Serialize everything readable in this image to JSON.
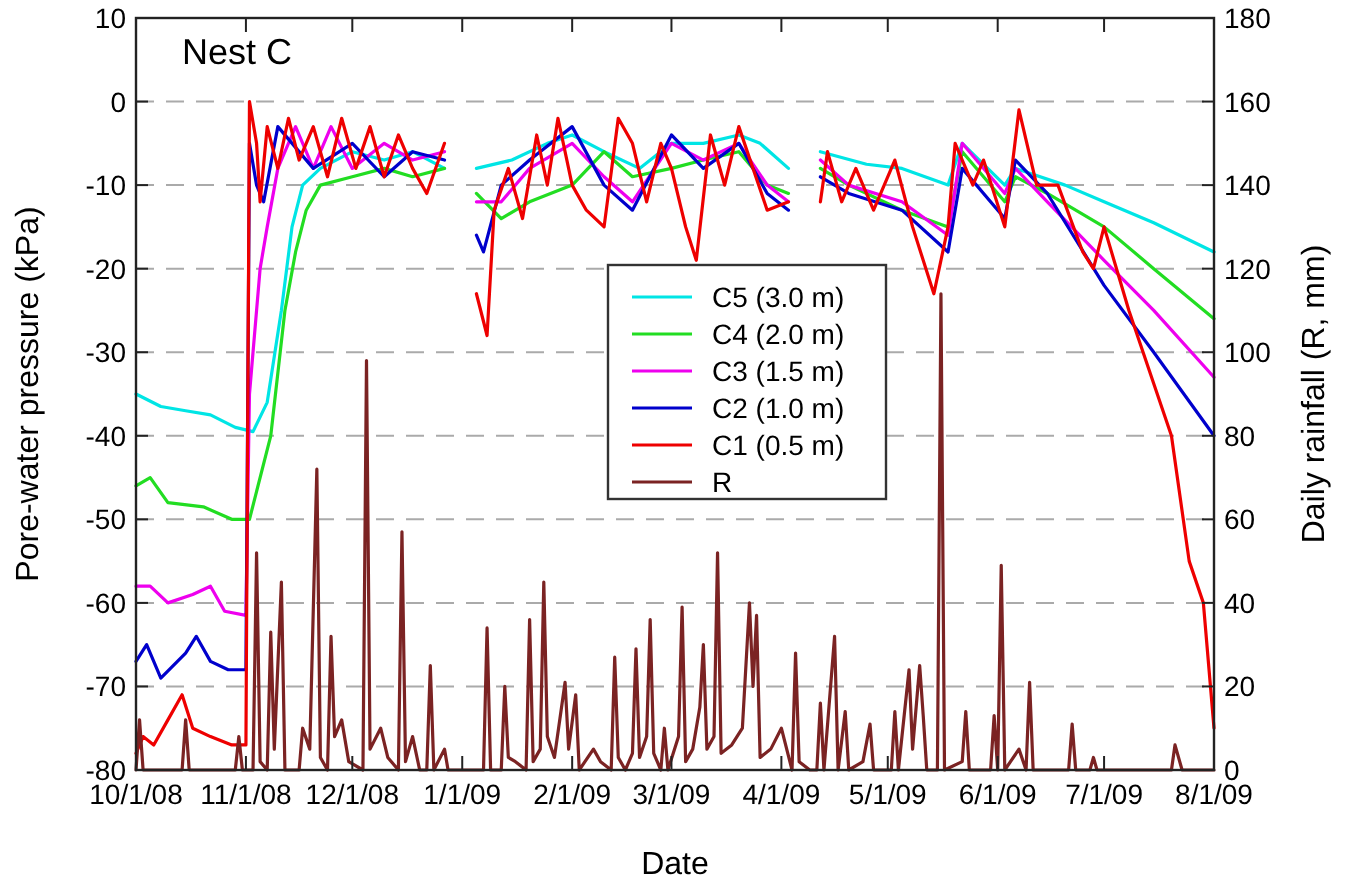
{
  "chart_data": {
    "type": "line",
    "xlabel": "Date",
    "ylabel": "Pore-water pressure (kPa)",
    "y2label": "Daily rainfall (R, mm)",
    "annotations": [
      "Nest C"
    ],
    "xlim": [
      "2008-10-01",
      "2009-08-01"
    ],
    "xticks": [
      {
        "value": "2008-10-01",
        "label": "10/1/08"
      },
      {
        "value": "2008-11-01",
        "label": "11/1/08"
      },
      {
        "value": "2008-12-01",
        "label": "12/1/08"
      },
      {
        "value": "2009-01-01",
        "label": "1/1/09"
      },
      {
        "value": "2009-02-01",
        "label": "2/1/09"
      },
      {
        "value": "2009-03-01",
        "label": "3/1/09"
      },
      {
        "value": "2009-04-01",
        "label": "4/1/09"
      },
      {
        "value": "2009-05-01",
        "label": "5/1/09"
      },
      {
        "value": "2009-06-01",
        "label": "6/1/09"
      },
      {
        "value": "2009-07-01",
        "label": "7/1/09"
      },
      {
        "value": "2009-08-01",
        "label": "8/1/09"
      }
    ],
    "ylim": [
      -80,
      10
    ],
    "yticks": [
      -80,
      -70,
      -60,
      -50,
      -40,
      -30,
      -20,
      -10,
      0,
      10
    ],
    "y2lim": [
      0,
      180
    ],
    "y2ticks": [
      0,
      20,
      40,
      60,
      80,
      100,
      120,
      140,
      160,
      180
    ],
    "grid": "y",
    "legend": "center",
    "line_style": "solid",
    "marker": "none",
    "series": [
      {
        "name": "C5 (3.0 m)",
        "color": "#00e5e5",
        "x": [
          "2008-10-01",
          "2008-10-08",
          "2008-10-15",
          "2008-10-22",
          "2008-10-29",
          "2008-11-03",
          "2008-11-07",
          "2008-11-11",
          "2008-11-14",
          "2008-11-17",
          "2008-11-22",
          "2008-12-01",
          "2008-12-10",
          "2008-12-18",
          "2008-12-27",
          "2009-01-01",
          "2009-01-05",
          "2009-01-15",
          "2009-01-25",
          "2009-02-01",
          "2009-02-10",
          "2009-02-20",
          "2009-03-01",
          "2009-03-10",
          "2009-03-20",
          "2009-03-26",
          "2009-04-03",
          "2009-04-08",
          "2009-04-12",
          "2009-04-25",
          "2009-05-05",
          "2009-05-18",
          "2009-05-22",
          "2009-06-03",
          "2009-06-06",
          "2009-06-20",
          "2009-07-01",
          "2009-07-15",
          "2009-08-01"
        ],
        "values": [
          -35,
          -36.5,
          -37,
          -37.5,
          -39,
          -39.5,
          -36,
          -25,
          -15,
          -10,
          -8,
          -6,
          -7,
          -6,
          -8,
          null,
          -8,
          -7,
          -5,
          -4,
          -6,
          -8,
          -5,
          -5,
          -4,
          -5,
          -8,
          null,
          -6,
          -7.5,
          -8,
          -10,
          -5,
          -10,
          -8,
          -10,
          -12,
          -14.5,
          -18
        ]
      },
      {
        "name": "C4 (2.0 m)",
        "color": "#22dd22",
        "x": [
          "2008-10-01",
          "2008-10-05",
          "2008-10-10",
          "2008-10-20",
          "2008-10-28",
          "2008-11-02",
          "2008-11-08",
          "2008-11-12",
          "2008-11-15",
          "2008-11-18",
          "2008-11-22",
          "2008-12-01",
          "2008-12-10",
          "2008-12-18",
          "2008-12-27",
          "2009-01-01",
          "2009-01-05",
          "2009-01-12",
          "2009-01-20",
          "2009-02-01",
          "2009-02-10",
          "2009-02-18",
          "2009-03-01",
          "2009-03-10",
          "2009-03-20",
          "2009-03-28",
          "2009-04-03",
          "2009-04-08",
          "2009-04-12",
          "2009-04-20",
          "2009-05-05",
          "2009-05-18",
          "2009-05-22",
          "2009-06-03",
          "2009-06-06",
          "2009-06-15",
          "2009-07-01",
          "2009-07-15",
          "2009-08-01"
        ],
        "values": [
          -46,
          -45,
          -48,
          -48.5,
          -50,
          -50,
          -40,
          -25,
          -18,
          -13,
          -10,
          -9,
          -8,
          -9,
          -8,
          null,
          -11,
          -14,
          -12,
          -10,
          -6,
          -9,
          -8,
          -7,
          -6,
          -10,
          -11,
          null,
          -8,
          -10,
          -13,
          -15,
          -6,
          -12,
          -9,
          -11,
          -15,
          -20,
          -26
        ]
      },
      {
        "name": "C3 (1.5 m)",
        "color": "#ee00ee",
        "x": [
          "2008-10-01",
          "2008-10-05",
          "2008-10-10",
          "2008-10-17",
          "2008-10-22",
          "2008-10-26",
          "2008-11-01",
          "2008-11-02",
          "2008-11-05",
          "2008-11-07",
          "2008-11-10",
          "2008-11-15",
          "2008-11-20",
          "2008-11-25",
          "2008-12-01",
          "2008-12-10",
          "2008-12-18",
          "2008-12-27",
          "2009-01-01",
          "2009-01-05",
          "2009-01-12",
          "2009-01-20",
          "2009-02-01",
          "2009-02-10",
          "2009-02-18",
          "2009-03-01",
          "2009-03-10",
          "2009-03-20",
          "2009-03-28",
          "2009-04-03",
          "2009-04-08",
          "2009-04-12",
          "2009-04-20",
          "2009-05-05",
          "2009-05-18",
          "2009-05-22",
          "2009-06-03",
          "2009-06-06",
          "2009-06-15",
          "2009-07-01",
          "2009-07-15",
          "2009-08-01"
        ],
        "values": [
          -58,
          -58,
          -60,
          -59,
          -58,
          -61,
          -61.5,
          -35,
          -20,
          -15,
          -8,
          -3,
          -8,
          -3,
          -8,
          -5,
          -7,
          -6,
          null,
          -12,
          -12,
          -8,
          -5,
          -9,
          -12,
          -5,
          -7,
          -5,
          -10,
          -12,
          null,
          -7,
          -10,
          -12,
          -16,
          -5,
          -11,
          -8,
          -12,
          -19,
          -25,
          -33
        ]
      },
      {
        "name": "C2 (1.0 m)",
        "color": "#0000cc",
        "x": [
          "2008-10-01",
          "2008-10-04",
          "2008-10-08",
          "2008-10-15",
          "2008-10-18",
          "2008-10-22",
          "2008-10-27",
          "2008-11-01",
          "2008-11-02",
          "2008-11-04",
          "2008-11-06",
          "2008-11-10",
          "2008-11-20",
          "2008-12-01",
          "2008-12-10",
          "2008-12-18",
          "2008-12-27",
          "2009-01-01",
          "2009-01-05",
          "2009-01-07",
          "2009-01-12",
          "2009-01-20",
          "2009-02-01",
          "2009-02-10",
          "2009-02-18",
          "2009-03-01",
          "2009-03-10",
          "2009-03-20",
          "2009-03-28",
          "2009-04-03",
          "2009-04-08",
          "2009-04-12",
          "2009-04-20",
          "2009-05-05",
          "2009-05-18",
          "2009-05-22",
          "2009-06-03",
          "2009-06-06",
          "2009-06-15",
          "2009-07-01",
          "2009-07-15",
          "2009-08-01"
        ],
        "values": [
          -67,
          -65,
          -69,
          -66,
          -64,
          -67,
          -68,
          -68,
          -5,
          -10,
          -12,
          -3,
          -8,
          -5,
          -9,
          -6,
          -7,
          null,
          -16,
          -18,
          -10,
          -7,
          -3,
          -10,
          -13,
          -4,
          -8,
          -5,
          -11,
          -13,
          null,
          -9,
          -11,
          -13,
          -18,
          -8,
          -14,
          -7,
          -11,
          -22,
          -30,
          -40
        ]
      },
      {
        "name": "C1 (0.5 m)",
        "color": "#ee0000",
        "x": [
          "2008-10-01",
          "2008-10-03",
          "2008-10-06",
          "2008-10-10",
          "2008-10-14",
          "2008-10-17",
          "2008-10-22",
          "2008-10-28",
          "2008-11-01",
          "2008-11-02",
          "2008-11-04",
          "2008-11-05",
          "2008-11-07",
          "2008-11-10",
          "2008-11-13",
          "2008-11-16",
          "2008-11-20",
          "2008-11-24",
          "2008-11-28",
          "2008-12-02",
          "2008-12-06",
          "2008-12-10",
          "2008-12-14",
          "2008-12-18",
          "2008-12-22",
          "2008-12-27",
          "2009-01-01",
          "2009-01-05",
          "2009-01-08",
          "2009-01-10",
          "2009-01-14",
          "2009-01-18",
          "2009-01-22",
          "2009-01-25",
          "2009-01-28",
          "2009-02-01",
          "2009-02-05",
          "2009-02-10",
          "2009-02-14",
          "2009-02-18",
          "2009-02-22",
          "2009-02-26",
          "2009-03-01",
          "2009-03-05",
          "2009-03-08",
          "2009-03-12",
          "2009-03-16",
          "2009-03-20",
          "2009-03-24",
          "2009-03-28",
          "2009-04-03",
          "2009-04-08",
          "2009-04-12",
          "2009-04-14",
          "2009-04-18",
          "2009-04-22",
          "2009-04-27",
          "2009-05-03",
          "2009-05-08",
          "2009-05-14",
          "2009-05-18",
          "2009-05-20",
          "2009-05-25",
          "2009-05-28",
          "2009-06-03",
          "2009-06-07",
          "2009-06-12",
          "2009-06-18",
          "2009-06-25",
          "2009-06-28",
          "2009-07-01",
          "2009-07-08",
          "2009-07-20",
          "2009-07-25",
          "2009-07-29",
          "2009-08-01"
        ],
        "values": [
          -78,
          -76,
          -77,
          -74,
          -71,
          -75,
          -76,
          -77,
          -77,
          0,
          -5,
          -12,
          -3,
          -8,
          -2,
          -7,
          -3,
          -9,
          -2,
          -8,
          -3,
          -9,
          -4,
          -8,
          -11,
          -5,
          null,
          -23,
          -28,
          -13,
          -8,
          -14,
          -4,
          -10,
          -2,
          -10,
          -13,
          -15,
          -2,
          -5,
          -12,
          -5,
          -8,
          -15,
          -19,
          -4,
          -10,
          -3,
          -8,
          -13,
          -12,
          null,
          -12,
          -6,
          -12,
          -8,
          -13,
          -7,
          -15,
          -23,
          -15,
          -5,
          -10,
          -7,
          -15,
          -1,
          -10,
          -10,
          -18,
          -20,
          -15,
          -25,
          -40,
          -55,
          -60,
          -75
        ]
      },
      {
        "name": "R",
        "color": "#7b2323",
        "axis": "y2",
        "x": [
          "2008-10-01",
          "2008-10-02",
          "2008-10-03",
          "2008-10-14",
          "2008-10-15",
          "2008-10-16",
          "2008-10-29",
          "2008-10-30",
          "2008-10-31",
          "2008-11-03",
          "2008-11-04",
          "2008-11-05",
          "2008-11-07",
          "2008-11-08",
          "2008-11-09",
          "2008-11-11",
          "2008-11-12",
          "2008-11-16",
          "2008-11-17",
          "2008-11-19",
          "2008-11-21",
          "2008-11-22",
          "2008-11-24",
          "2008-11-25",
          "2008-11-26",
          "2008-11-28",
          "2008-11-30",
          "2008-12-04",
          "2008-12-05",
          "2008-12-06",
          "2008-12-09",
          "2008-12-11",
          "2008-12-14",
          "2008-12-15",
          "2008-12-16",
          "2008-12-18",
          "2008-12-20",
          "2008-12-22",
          "2008-12-23",
          "2008-12-24",
          "2008-12-27",
          "2008-12-28",
          "2009-01-07",
          "2009-01-08",
          "2009-01-09",
          "2009-01-12",
          "2009-01-13",
          "2009-01-14",
          "2009-01-16",
          "2009-01-19",
          "2009-01-20",
          "2009-01-21",
          "2009-01-23",
          "2009-01-24",
          "2009-01-25",
          "2009-01-27",
          "2009-01-30",
          "2009-01-31",
          "2009-02-02",
          "2009-02-03",
          "2009-02-07",
          "2009-02-09",
          "2009-02-12",
          "2009-02-13",
          "2009-02-14",
          "2009-02-16",
          "2009-02-18",
          "2009-02-19",
          "2009-02-20",
          "2009-02-22",
          "2009-02-23",
          "2009-02-24",
          "2009-02-26",
          "2009-02-27",
          "2009-02-28",
          "2009-03-03",
          "2009-03-04",
          "2009-03-05",
          "2009-03-07",
          "2009-03-09",
          "2009-03-10",
          "2009-03-11",
          "2009-03-13",
          "2009-03-14",
          "2009-03-15",
          "2009-03-18",
          "2009-03-21",
          "2009-03-23",
          "2009-03-24",
          "2009-03-25",
          "2009-03-26",
          "2009-03-29",
          "2009-04-01",
          "2009-04-04",
          "2009-04-05",
          "2009-04-06",
          "2009-04-09",
          "2009-04-11",
          "2009-04-12",
          "2009-04-13",
          "2009-04-16",
          "2009-04-17",
          "2009-04-19",
          "2009-04-20",
          "2009-04-24",
          "2009-04-26",
          "2009-04-27",
          "2009-05-02",
          "2009-05-03",
          "2009-05-04",
          "2009-05-07",
          "2009-05-08",
          "2009-05-10",
          "2009-05-11",
          "2009-05-12",
          "2009-05-15",
          "2009-05-16",
          "2009-05-17",
          "2009-05-22",
          "2009-05-23",
          "2009-05-24",
          "2009-05-30",
          "2009-05-31",
          "2009-06-01",
          "2009-06-02",
          "2009-06-03",
          "2009-06-07",
          "2009-06-09",
          "2009-06-10",
          "2009-06-11",
          "2009-06-18",
          "2009-06-21",
          "2009-06-22",
          "2009-06-23",
          "2009-06-27",
          "2009-06-28",
          "2009-06-29",
          "2009-07-20",
          "2009-07-21",
          "2009-07-23",
          "2009-08-01"
        ],
        "values": [
          0,
          12,
          0,
          0,
          12,
          0,
          0,
          8,
          0,
          0,
          52,
          2,
          0,
          33,
          5,
          45,
          0,
          0,
          10,
          5,
          72,
          3,
          0,
          32,
          8,
          12,
          2,
          0,
          98,
          5,
          10,
          3,
          0,
          57,
          2,
          8,
          0,
          0,
          25,
          0,
          5,
          0,
          0,
          34,
          0,
          0,
          20,
          3,
          2,
          0,
          36,
          2,
          5,
          45,
          8,
          3,
          21,
          5,
          18,
          0,
          5,
          2,
          0,
          27,
          3,
          0,
          4,
          29,
          3,
          8,
          36,
          4,
          0,
          10,
          0,
          8,
          39,
          2,
          5,
          15,
          30,
          5,
          8,
          52,
          4,
          6,
          10,
          40,
          20,
          37,
          3,
          5,
          10,
          0,
          28,
          2,
          0,
          0,
          16,
          0,
          32,
          0,
          14,
          0,
          2,
          11,
          0,
          0,
          14,
          0,
          24,
          5,
          25,
          13,
          0,
          0,
          114,
          0,
          2,
          14,
          0,
          0,
          13,
          0,
          49,
          0,
          5,
          0,
          21,
          0,
          0,
          0,
          11,
          0,
          0,
          3,
          0,
          0,
          6,
          0,
          0
        ]
      }
    ]
  }
}
